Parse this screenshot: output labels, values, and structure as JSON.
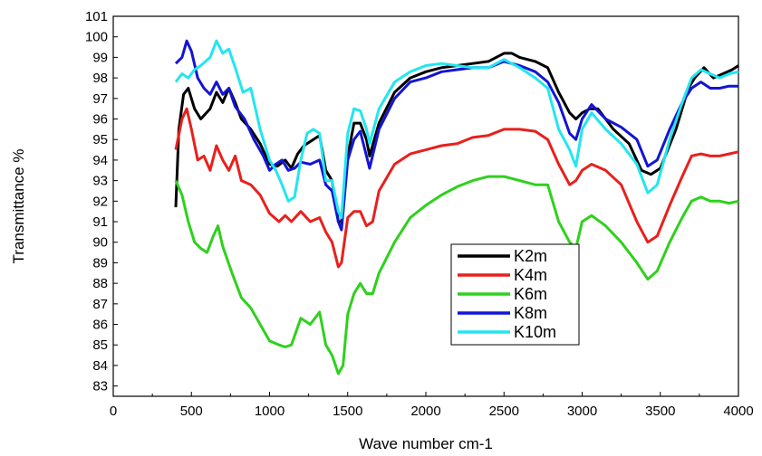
{
  "chart_data": {
    "type": "line",
    "title": "",
    "xlabel": "Wave number cm-1",
    "ylabel": "Transmittance %",
    "xlim": [
      0,
      4000
    ],
    "ylim": [
      82.5,
      101
    ],
    "x_ticks": [
      0,
      500,
      1000,
      1500,
      2000,
      2500,
      3000,
      3500,
      4000
    ],
    "y_ticks": [
      83,
      84,
      85,
      86,
      87,
      88,
      89,
      90,
      91,
      92,
      93,
      94,
      95,
      96,
      97,
      98,
      99,
      100,
      101
    ],
    "grid": false,
    "legend_position": "center-right",
    "series": [
      {
        "name": "K2m",
        "color": "#000000",
        "points": [
          [
            400,
            91.7
          ],
          [
            420,
            95.5
          ],
          [
            450,
            97.2
          ],
          [
            480,
            97.5
          ],
          [
            520,
            96.5
          ],
          [
            560,
            96.0
          ],
          [
            620,
            96.5
          ],
          [
            660,
            97.3
          ],
          [
            700,
            96.8
          ],
          [
            740,
            97.5
          ],
          [
            780,
            96.8
          ],
          [
            820,
            96.0
          ],
          [
            880,
            95.5
          ],
          [
            940,
            94.8
          ],
          [
            1000,
            93.8
          ],
          [
            1050,
            93.7
          ],
          [
            1100,
            94.0
          ],
          [
            1140,
            93.6
          ],
          [
            1180,
            94.3
          ],
          [
            1220,
            94.7
          ],
          [
            1280,
            95.0
          ],
          [
            1320,
            95.2
          ],
          [
            1360,
            93.5
          ],
          [
            1400,
            93.0
          ],
          [
            1440,
            91.0
          ],
          [
            1460,
            91.0
          ],
          [
            1500,
            94.2
          ],
          [
            1540,
            95.8
          ],
          [
            1580,
            95.8
          ],
          [
            1620,
            95.0
          ],
          [
            1640,
            94.2
          ],
          [
            1700,
            95.8
          ],
          [
            1800,
            97.3
          ],
          [
            1900,
            98.0
          ],
          [
            2000,
            98.3
          ],
          [
            2100,
            98.5
          ],
          [
            2200,
            98.6
          ],
          [
            2300,
            98.7
          ],
          [
            2400,
            98.8
          ],
          [
            2500,
            99.2
          ],
          [
            2550,
            99.2
          ],
          [
            2600,
            99.0
          ],
          [
            2700,
            98.8
          ],
          [
            2780,
            98.5
          ],
          [
            2850,
            97.3
          ],
          [
            2920,
            96.3
          ],
          [
            2960,
            96.0
          ],
          [
            3000,
            96.3
          ],
          [
            3050,
            96.5
          ],
          [
            3100,
            96.5
          ],
          [
            3200,
            95.5
          ],
          [
            3300,
            94.8
          ],
          [
            3380,
            93.5
          ],
          [
            3440,
            93.3
          ],
          [
            3500,
            93.6
          ],
          [
            3600,
            95.5
          ],
          [
            3680,
            97.5
          ],
          [
            3720,
            98.0
          ],
          [
            3780,
            98.5
          ],
          [
            3840,
            98.0
          ],
          [
            3900,
            98.2
          ],
          [
            3960,
            98.4
          ],
          [
            4000,
            98.6
          ]
        ]
      },
      {
        "name": "K4m",
        "color": "#e8201c",
        "points": [
          [
            400,
            94.5
          ],
          [
            440,
            96.0
          ],
          [
            470,
            96.5
          ],
          [
            500,
            95.5
          ],
          [
            540,
            94.0
          ],
          [
            580,
            94.2
          ],
          [
            620,
            93.5
          ],
          [
            660,
            94.7
          ],
          [
            700,
            94.0
          ],
          [
            740,
            93.5
          ],
          [
            780,
            94.2
          ],
          [
            820,
            93.0
          ],
          [
            880,
            92.8
          ],
          [
            940,
            92.3
          ],
          [
            1000,
            91.4
          ],
          [
            1060,
            91.0
          ],
          [
            1100,
            91.3
          ],
          [
            1140,
            91.0
          ],
          [
            1200,
            91.5
          ],
          [
            1260,
            91.0
          ],
          [
            1320,
            91.2
          ],
          [
            1360,
            90.5
          ],
          [
            1400,
            90.0
          ],
          [
            1440,
            88.8
          ],
          [
            1460,
            89.0
          ],
          [
            1500,
            91.2
          ],
          [
            1540,
            91.5
          ],
          [
            1580,
            91.5
          ],
          [
            1620,
            90.8
          ],
          [
            1660,
            91.0
          ],
          [
            1700,
            92.5
          ],
          [
            1800,
            93.8
          ],
          [
            1900,
            94.3
          ],
          [
            2000,
            94.5
          ],
          [
            2100,
            94.7
          ],
          [
            2200,
            94.8
          ],
          [
            2300,
            95.1
          ],
          [
            2400,
            95.2
          ],
          [
            2500,
            95.5
          ],
          [
            2600,
            95.5
          ],
          [
            2700,
            95.4
          ],
          [
            2780,
            95.0
          ],
          [
            2850,
            93.8
          ],
          [
            2920,
            92.8
          ],
          [
            2960,
            93.0
          ],
          [
            3000,
            93.5
          ],
          [
            3060,
            93.8
          ],
          [
            3150,
            93.5
          ],
          [
            3250,
            92.8
          ],
          [
            3350,
            91.0
          ],
          [
            3420,
            90.0
          ],
          [
            3480,
            90.3
          ],
          [
            3560,
            91.8
          ],
          [
            3640,
            93.2
          ],
          [
            3700,
            94.2
          ],
          [
            3760,
            94.3
          ],
          [
            3820,
            94.2
          ],
          [
            3880,
            94.2
          ],
          [
            3940,
            94.3
          ],
          [
            4000,
            94.4
          ]
        ]
      },
      {
        "name": "K6m",
        "color": "#2ed11c",
        "points": [
          [
            400,
            93.0
          ],
          [
            440,
            92.3
          ],
          [
            480,
            91.0
          ],
          [
            520,
            90.0
          ],
          [
            560,
            89.7
          ],
          [
            600,
            89.5
          ],
          [
            640,
            90.3
          ],
          [
            670,
            90.8
          ],
          [
            700,
            89.8
          ],
          [
            760,
            88.5
          ],
          [
            820,
            87.3
          ],
          [
            880,
            86.8
          ],
          [
            940,
            86.0
          ],
          [
            1000,
            85.2
          ],
          [
            1060,
            85.0
          ],
          [
            1100,
            84.9
          ],
          [
            1140,
            85.0
          ],
          [
            1200,
            86.3
          ],
          [
            1260,
            86.0
          ],
          [
            1320,
            86.6
          ],
          [
            1360,
            85.0
          ],
          [
            1400,
            84.5
          ],
          [
            1440,
            83.6
          ],
          [
            1470,
            84.0
          ],
          [
            1500,
            86.5
          ],
          [
            1540,
            87.5
          ],
          [
            1580,
            88.0
          ],
          [
            1620,
            87.5
          ],
          [
            1660,
            87.5
          ],
          [
            1700,
            88.5
          ],
          [
            1800,
            90.0
          ],
          [
            1900,
            91.2
          ],
          [
            2000,
            91.8
          ],
          [
            2100,
            92.3
          ],
          [
            2200,
            92.7
          ],
          [
            2300,
            93.0
          ],
          [
            2400,
            93.2
          ],
          [
            2500,
            93.2
          ],
          [
            2600,
            93.0
          ],
          [
            2700,
            92.8
          ],
          [
            2780,
            92.8
          ],
          [
            2850,
            91.0
          ],
          [
            2920,
            90.0
          ],
          [
            2960,
            89.7
          ],
          [
            3000,
            91.0
          ],
          [
            3060,
            91.3
          ],
          [
            3150,
            90.8
          ],
          [
            3250,
            90.0
          ],
          [
            3350,
            89.0
          ],
          [
            3420,
            88.2
          ],
          [
            3480,
            88.6
          ],
          [
            3560,
            90.0
          ],
          [
            3640,
            91.2
          ],
          [
            3700,
            92.0
          ],
          [
            3760,
            92.2
          ],
          [
            3820,
            92.0
          ],
          [
            3880,
            92.0
          ],
          [
            3940,
            91.9
          ],
          [
            4000,
            92.0
          ]
        ]
      },
      {
        "name": "K8m",
        "color": "#1414d4",
        "points": [
          [
            400,
            98.7
          ],
          [
            440,
            99.0
          ],
          [
            470,
            99.8
          ],
          [
            500,
            99.3
          ],
          [
            540,
            98.0
          ],
          [
            580,
            97.5
          ],
          [
            620,
            97.2
          ],
          [
            660,
            97.8
          ],
          [
            700,
            97.2
          ],
          [
            740,
            97.5
          ],
          [
            780,
            96.6
          ],
          [
            840,
            96.0
          ],
          [
            900,
            95.0
          ],
          [
            960,
            94.2
          ],
          [
            1000,
            93.5
          ],
          [
            1040,
            93.8
          ],
          [
            1080,
            94.0
          ],
          [
            1120,
            93.5
          ],
          [
            1160,
            93.6
          ],
          [
            1200,
            93.9
          ],
          [
            1260,
            93.8
          ],
          [
            1320,
            94.0
          ],
          [
            1360,
            92.8
          ],
          [
            1400,
            92.5
          ],
          [
            1440,
            91.0
          ],
          [
            1460,
            90.6
          ],
          [
            1500,
            94.0
          ],
          [
            1540,
            95.0
          ],
          [
            1580,
            95.4
          ],
          [
            1620,
            94.2
          ],
          [
            1640,
            93.6
          ],
          [
            1700,
            95.5
          ],
          [
            1800,
            97.0
          ],
          [
            1900,
            97.8
          ],
          [
            2000,
            98.0
          ],
          [
            2100,
            98.3
          ],
          [
            2200,
            98.4
          ],
          [
            2300,
            98.5
          ],
          [
            2400,
            98.5
          ],
          [
            2500,
            98.8
          ],
          [
            2600,
            98.6
          ],
          [
            2700,
            98.3
          ],
          [
            2780,
            97.8
          ],
          [
            2850,
            96.8
          ],
          [
            2920,
            95.3
          ],
          [
            2960,
            95.0
          ],
          [
            3000,
            96.0
          ],
          [
            3060,
            96.7
          ],
          [
            3150,
            96.0
          ],
          [
            3250,
            95.6
          ],
          [
            3350,
            95.0
          ],
          [
            3420,
            93.7
          ],
          [
            3480,
            94.0
          ],
          [
            3560,
            95.5
          ],
          [
            3640,
            96.8
          ],
          [
            3700,
            97.5
          ],
          [
            3760,
            97.8
          ],
          [
            3820,
            97.5
          ],
          [
            3880,
            97.5
          ],
          [
            3940,
            97.6
          ],
          [
            4000,
            97.6
          ]
        ]
      },
      {
        "name": "K10m",
        "color": "#22e6f0",
        "points": [
          [
            400,
            97.8
          ],
          [
            440,
            98.2
          ],
          [
            480,
            98.0
          ],
          [
            520,
            98.4
          ],
          [
            560,
            98.6
          ],
          [
            620,
            99.0
          ],
          [
            660,
            99.8
          ],
          [
            700,
            99.2
          ],
          [
            740,
            99.4
          ],
          [
            780,
            98.5
          ],
          [
            830,
            97.3
          ],
          [
            880,
            97.5
          ],
          [
            940,
            95.5
          ],
          [
            1000,
            94.0
          ],
          [
            1040,
            93.5
          ],
          [
            1080,
            92.8
          ],
          [
            1120,
            92.0
          ],
          [
            1160,
            92.2
          ],
          [
            1200,
            94.0
          ],
          [
            1240,
            95.3
          ],
          [
            1280,
            95.5
          ],
          [
            1320,
            95.3
          ],
          [
            1360,
            93.0
          ],
          [
            1400,
            93.0
          ],
          [
            1440,
            91.5
          ],
          [
            1460,
            91.2
          ],
          [
            1500,
            95.3
          ],
          [
            1540,
            96.5
          ],
          [
            1580,
            96.4
          ],
          [
            1620,
            95.5
          ],
          [
            1640,
            94.8
          ],
          [
            1700,
            96.5
          ],
          [
            1800,
            97.8
          ],
          [
            1900,
            98.3
          ],
          [
            2000,
            98.6
          ],
          [
            2100,
            98.7
          ],
          [
            2200,
            98.6
          ],
          [
            2300,
            98.5
          ],
          [
            2400,
            98.5
          ],
          [
            2500,
            98.9
          ],
          [
            2600,
            98.5
          ],
          [
            2700,
            98.0
          ],
          [
            2780,
            97.5
          ],
          [
            2850,
            95.5
          ],
          [
            2920,
            94.5
          ],
          [
            2960,
            93.7
          ],
          [
            3000,
            95.5
          ],
          [
            3060,
            96.3
          ],
          [
            3150,
            95.5
          ],
          [
            3250,
            94.8
          ],
          [
            3350,
            93.8
          ],
          [
            3420,
            92.4
          ],
          [
            3480,
            92.8
          ],
          [
            3560,
            95.0
          ],
          [
            3640,
            96.8
          ],
          [
            3700,
            98.0
          ],
          [
            3760,
            98.4
          ],
          [
            3820,
            98.2
          ],
          [
            3880,
            98.0
          ],
          [
            3940,
            98.2
          ],
          [
            4000,
            98.3
          ]
        ]
      }
    ]
  }
}
